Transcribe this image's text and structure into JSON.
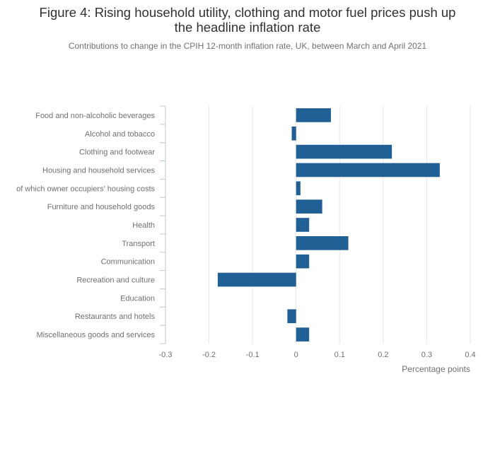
{
  "chart_data": {
    "type": "bar",
    "orientation": "horizontal",
    "title_line1": "Figure 4: Rising household utility, clothing and motor fuel prices push up",
    "title_line2": "the headline inflation rate",
    "subtitle": "Contributions to change in the CPIH 12-month inflation rate, UK, between March and April 2021",
    "xlabel": "Percentage points",
    "ylabel": "",
    "xlim": [
      -0.3,
      0.4
    ],
    "x_ticks": [
      -0.3,
      -0.2,
      -0.1,
      0,
      0.1,
      0.2,
      0.3,
      0.4
    ],
    "x_tick_labels": [
      "-0.3",
      "-0.2",
      "-0.1",
      "0",
      "0.1",
      "0.2",
      "0.3",
      "0.4"
    ],
    "grid": "vertical",
    "bar_color": "#206095",
    "categories": [
      "Food and non-alcoholic beverages",
      "Alcohol and tobacco",
      "Clothing and footwear",
      "Housing and household services",
      "of which owner occupiers' housing costs",
      "Furniture and household goods",
      "Health",
      "Transport",
      "Communication",
      "Recreation and culture",
      "Education",
      "Restaurants and hotels",
      "Miscellaneous goods and services"
    ],
    "values": [
      0.08,
      -0.01,
      0.22,
      0.33,
      0.01,
      0.06,
      0.03,
      0.12,
      0.03,
      -0.18,
      0,
      -0.02,
      0.03
    ]
  }
}
